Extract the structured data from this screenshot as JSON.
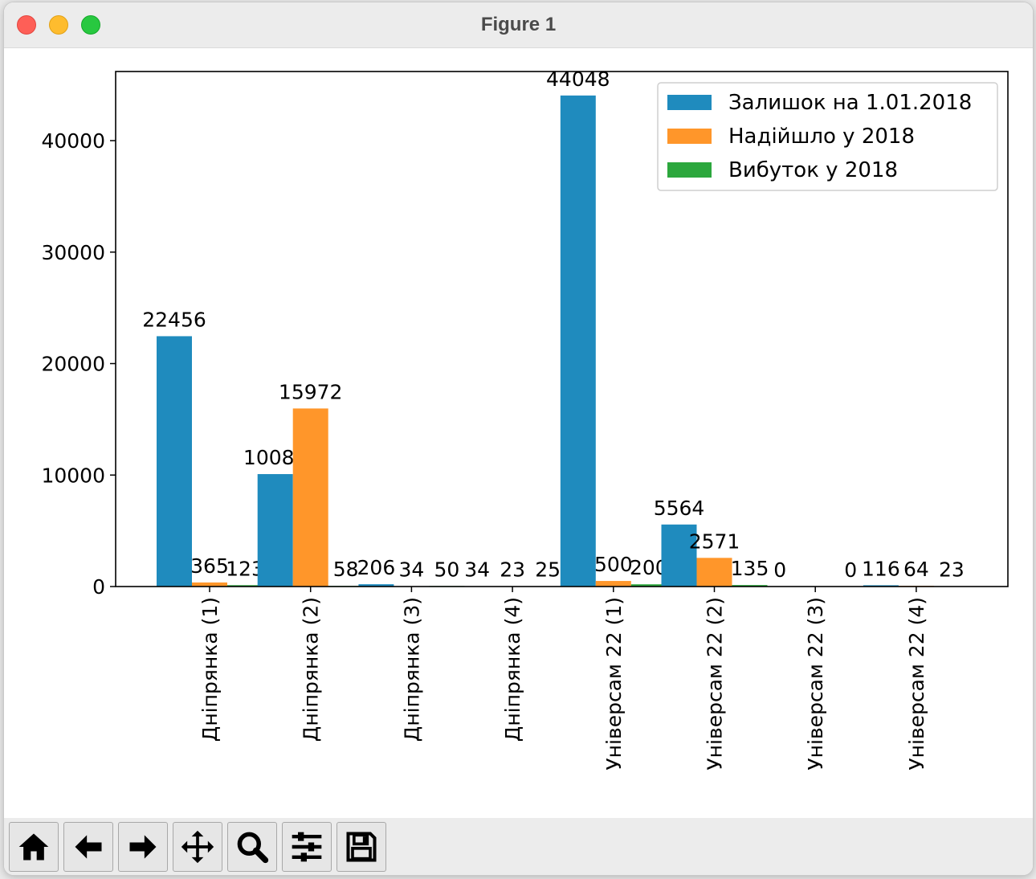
{
  "window": {
    "title": "Figure 1"
  },
  "toolbar": {
    "buttons": [
      {
        "name": "home-button",
        "icon": "home-icon"
      },
      {
        "name": "back-button",
        "icon": "arrow-left-icon"
      },
      {
        "name": "forward-button",
        "icon": "arrow-right-icon"
      },
      {
        "name": "pan-button",
        "icon": "move-icon"
      },
      {
        "name": "zoom-button",
        "icon": "magnifier-icon"
      },
      {
        "name": "configure-subplots-button",
        "icon": "sliders-icon"
      },
      {
        "name": "save-button",
        "icon": "floppy-disk-icon"
      }
    ]
  },
  "chart_data": {
    "type": "bar",
    "categories": [
      "Дніпрянка (1)",
      "Дніпрянка (2)",
      "Дніпрянка (3)",
      "Дніпрянка (4)",
      "Універсам 22 (1)",
      "Універсам 22 (2)",
      "Універсам 22 (3)",
      "Універсам 22 (4)"
    ],
    "series": [
      {
        "name": "Залишок на 1.01.2018",
        "color": "#1f8bbe",
        "values": [
          22456,
          10087,
          206,
          34,
          44048,
          5564,
          0,
          116
        ],
        "labels": [
          "22456",
          "10087",
          "206",
          "34",
          "44048",
          "5564",
          "0",
          "116"
        ]
      },
      {
        "name": "Надійшло у 2018",
        "color": "#ff962a",
        "values": [
          365,
          15972,
          34,
          23,
          500,
          2571,
          0,
          64
        ],
        "labels": [
          "365",
          "15972",
          "34",
          "23",
          "500",
          "2571",
          "",
          "64"
        ]
      },
      {
        "name": "Вибуток у 2018",
        "color": "#2ca73d",
        "values": [
          123,
          58,
          50,
          25,
          200,
          135,
          0,
          23
        ],
        "labels": [
          "123",
          "58",
          "50",
          "25",
          "200",
          "135",
          "0",
          "23"
        ]
      }
    ],
    "yticks": [
      0,
      10000,
      20000,
      30000,
      40000
    ],
    "ylim": [
      0,
      46200
    ],
    "xlabel": "",
    "ylabel": "",
    "legend": "top-right",
    "grid": false
  }
}
